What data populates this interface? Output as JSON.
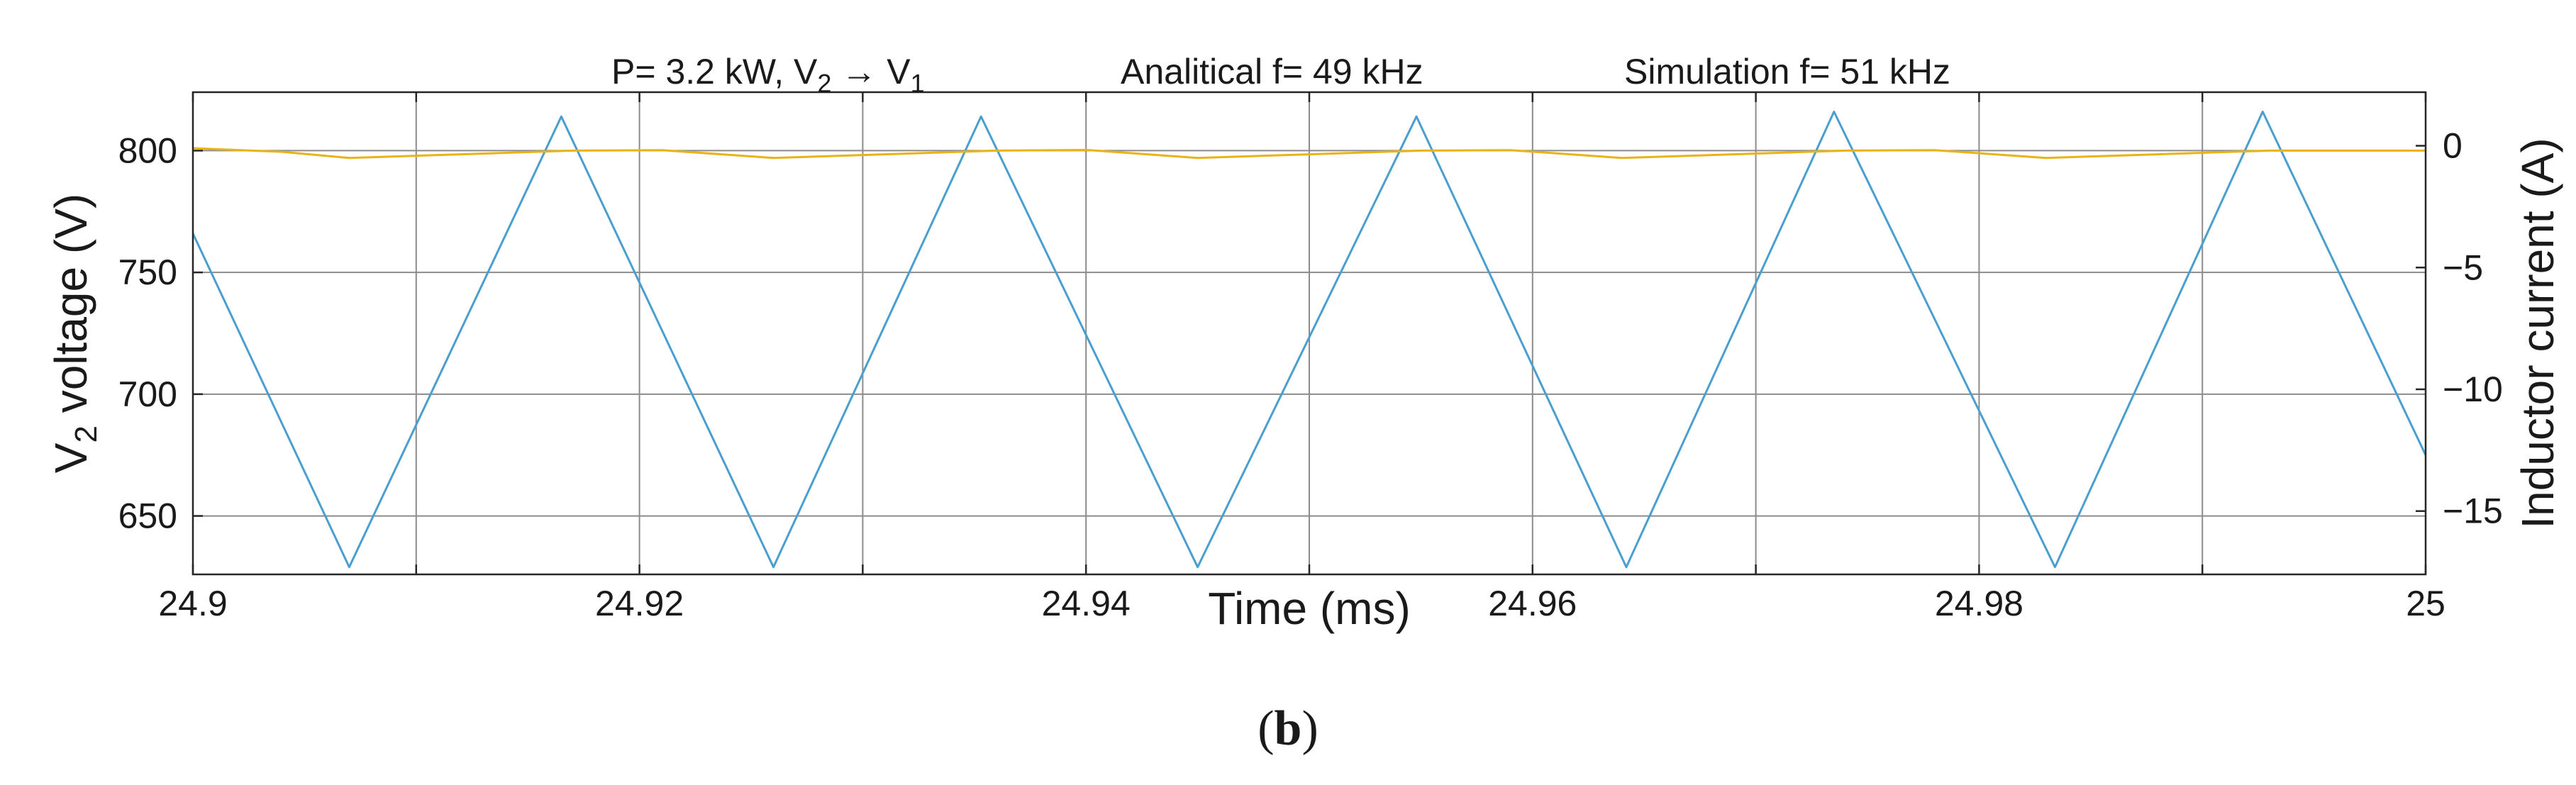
{
  "chart_data": {
    "type": "line",
    "title": "",
    "annotations": {
      "power": "P= 3.2 kW, V",
      "power_sub2": "2",
      "arrow": " → V",
      "power_sub1": "1",
      "analytical": "Analitical f= 49 kHz",
      "simulation": "Simulation f= 51 kHz"
    },
    "xlabel": "Time (ms)",
    "ylabel_left": {
      "prefix": "V",
      "sub": "2",
      "suffix": " voltage (V)"
    },
    "ylabel_right": "Inductor current (A)",
    "xlim": [
      24.9,
      25.0
    ],
    "ylim_left": [
      626,
      824
    ],
    "ylim_right": [
      -17.6,
      2.2
    ],
    "x_ticks": [
      24.9,
      24.91,
      24.92,
      24.93,
      24.94,
      24.95,
      24.96,
      24.97,
      24.98,
      24.99,
      25.0
    ],
    "x_tick_labels": [
      "24.9",
      "",
      "24.92",
      "",
      "24.94",
      "",
      "24.96",
      "",
      "24.98",
      "",
      "25"
    ],
    "y_left_ticks": [
      650,
      700,
      750,
      800
    ],
    "y_left_tick_labels": [
      "650",
      "700",
      "750",
      "800"
    ],
    "y_right_ticks": [
      -15,
      -10,
      -5,
      0
    ],
    "y_right_tick_labels": [
      "−15",
      "−10",
      "−5",
      "0"
    ],
    "grid": true,
    "series": [
      {
        "name": "V2 voltage",
        "axis": "left",
        "color": "#e9b318",
        "x": [
          24.9,
          24.904,
          24.907,
          24.912,
          24.917,
          24.921,
          24.926,
          24.931,
          24.936,
          24.94,
          24.945,
          24.95,
          24.955,
          24.959,
          24.964,
          24.969,
          24.974,
          24.978,
          24.983,
          24.988,
          24.993,
          24.997,
          25.0
        ],
        "values": [
          801,
          799.5,
          797,
          798.5,
          800,
          800.2,
          797,
          798.5,
          800,
          800.3,
          797,
          798.5,
          800,
          800.2,
          797,
          798.5,
          800,
          800.2,
          797,
          798.5,
          800,
          800,
          800
        ]
      },
      {
        "name": "Inductor current",
        "axis": "right",
        "color": "#4a9fd0",
        "x": [
          24.9,
          24.907,
          24.9165,
          24.926,
          24.9353,
          24.945,
          24.9548,
          24.9642,
          24.9735,
          24.9834,
          24.9927,
          25.0
        ],
        "values": [
          -3.6,
          -17.3,
          1.2,
          -17.3,
          1.2,
          -17.3,
          1.2,
          -17.3,
          1.4,
          -17.3,
          1.4,
          -12.7
        ]
      }
    ]
  },
  "caption": {
    "open": "(",
    "letter": "b",
    "close": ")"
  }
}
